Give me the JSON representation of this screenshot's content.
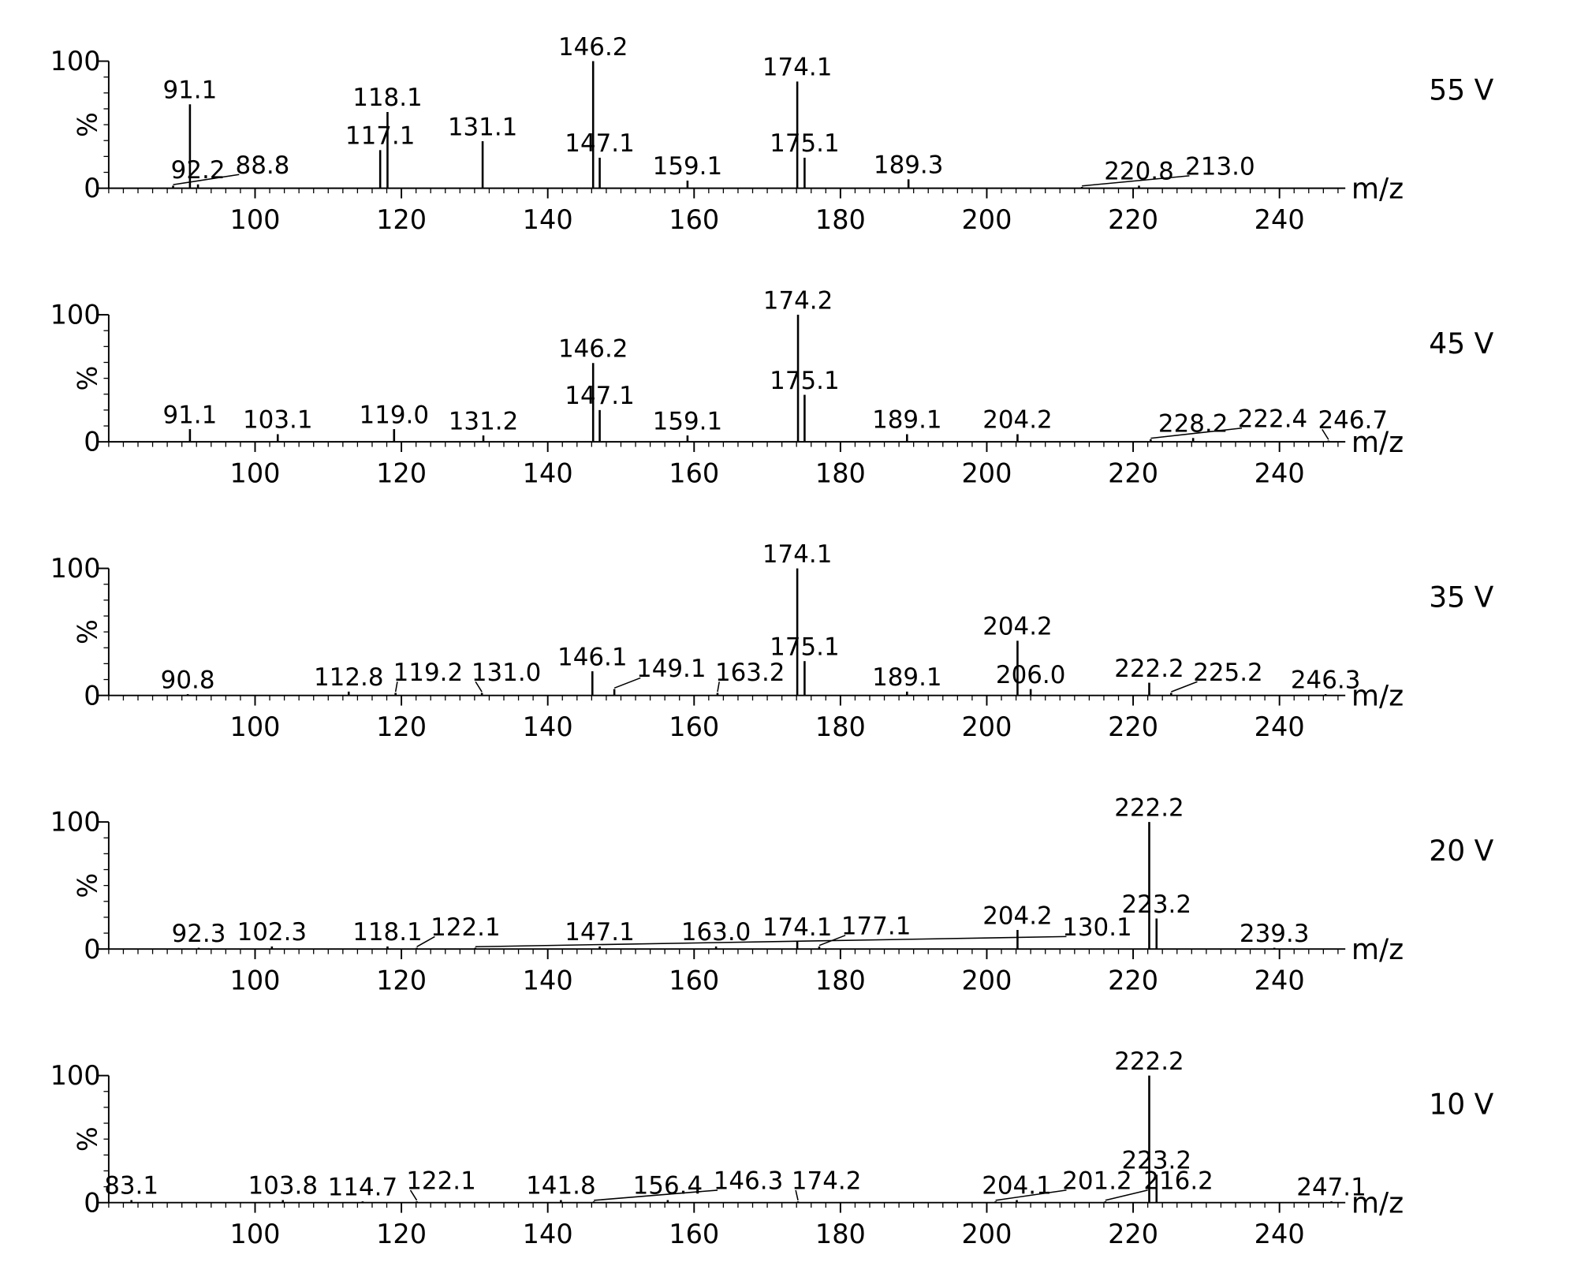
{
  "chart_data": [
    {
      "type": "bar",
      "annotation": "55 V",
      "ylabel": "%",
      "xlabel": "m/z",
      "color": "#000000",
      "x": [
        88.8,
        91.1,
        92.2,
        117.1,
        118.1,
        131.1,
        146.2,
        147.1,
        159.1,
        174.1,
        175.1,
        189.3,
        213.0,
        220.8
      ],
      "labels": [
        "88.8",
        "91.1",
        "92.2",
        "117.1",
        "118.1",
        "131.1",
        "146.2",
        "147.1",
        "159.1",
        "174.1",
        "175.1",
        "189.3",
        "213.0",
        "220.8"
      ],
      "values": [
        2,
        66,
        3,
        30,
        60,
        37,
        100,
        24,
        6,
        84,
        24,
        7,
        1,
        2
      ],
      "xlim": [
        80,
        249
      ],
      "ylim": [
        0,
        100
      ],
      "xticks": [
        100,
        120,
        140,
        160,
        180,
        200,
        220,
        240
      ],
      "yticks": [
        0,
        100
      ]
    },
    {
      "type": "bar",
      "annotation": "45 V",
      "ylabel": "%",
      "xlabel": "m/z",
      "color": "#000000",
      "x": [
        91.1,
        103.1,
        119.0,
        131.2,
        146.2,
        147.1,
        159.1,
        174.2,
        175.1,
        189.1,
        204.2,
        222.4,
        228.2,
        246.7
      ],
      "labels": [
        "91.1",
        "103.1",
        "119.0",
        "131.2",
        "146.2",
        "147.1",
        "159.1",
        "174.2",
        "175.1",
        "189.1",
        "204.2",
        "222.4",
        "228.2",
        "246.7"
      ],
      "values": [
        10,
        6,
        10,
        5,
        62,
        25,
        5,
        100,
        37,
        6,
        6,
        2,
        3,
        1
      ],
      "xlim": [
        80,
        249
      ],
      "ylim": [
        0,
        100
      ],
      "xticks": [
        100,
        120,
        140,
        160,
        180,
        200,
        220,
        240
      ],
      "yticks": [
        0,
        100
      ]
    },
    {
      "type": "bar",
      "annotation": "35 V",
      "ylabel": "%",
      "xlabel": "m/z",
      "color": "#000000",
      "x": [
        90.8,
        112.8,
        119.2,
        131.0,
        146.1,
        149.1,
        163.2,
        174.1,
        175.1,
        189.1,
        204.2,
        206.0,
        222.2,
        225.2,
        246.3
      ],
      "labels": [
        "90.8",
        "112.8",
        "119.2",
        "131.0",
        "146.1",
        "149.1",
        "163.2",
        "174.1",
        "175.1",
        "189.1",
        "204.2",
        "206.0",
        "222.2",
        "225.2",
        "246.3"
      ],
      "values": [
        1,
        3,
        2,
        2,
        19,
        5,
        2,
        100,
        27,
        3,
        43,
        5,
        10,
        2,
        1
      ],
      "xlim": [
        80,
        249
      ],
      "ylim": [
        0,
        100
      ],
      "xticks": [
        100,
        120,
        140,
        160,
        180,
        200,
        220,
        240
      ],
      "yticks": [
        0,
        100
      ]
    },
    {
      "type": "bar",
      "annotation": "20 V",
      "ylabel": "%",
      "xlabel": "m/z",
      "color": "#000000",
      "x": [
        92.3,
        102.3,
        118.1,
        122.1,
        130.1,
        147.1,
        163.0,
        174.1,
        177.1,
        204.2,
        222.2,
        223.2,
        239.3
      ],
      "labels": [
        "92.3",
        "102.3",
        "118.1",
        "122.1",
        "130.1",
        "147.1",
        "163.0",
        "174.1",
        "177.1",
        "204.2",
        "222.2",
        "223.2",
        "239.3"
      ],
      "values": [
        1,
        2,
        2,
        1,
        1,
        2,
        2,
        6,
        2,
        15,
        100,
        24,
        1
      ],
      "xlim": [
        80,
        249
      ],
      "ylim": [
        0,
        100
      ],
      "xticks": [
        100,
        120,
        140,
        160,
        180,
        200,
        220,
        240
      ],
      "yticks": [
        0,
        100
      ]
    },
    {
      "type": "bar",
      "annotation": "10 V",
      "ylabel": "%",
      "xlabel": "m/z",
      "color": "#000000",
      "x": [
        83.1,
        103.8,
        114.7,
        122.1,
        141.8,
        146.3,
        156.4,
        174.2,
        201.2,
        204.1,
        216.2,
        222.2,
        223.2,
        247.1
      ],
      "labels": [
        "83.1",
        "103.8",
        "114.7",
        "122.1",
        "141.8",
        "146.3",
        "156.4",
        "174.2",
        "201.2",
        "204.1",
        "216.2",
        "222.2",
        "223.2",
        "247.1"
      ],
      "values": [
        2,
        2,
        1,
        1,
        2,
        1,
        2,
        1,
        1,
        2,
        1,
        100,
        22,
        1
      ],
      "xlim": [
        80,
        249
      ],
      "ylim": [
        0,
        100
      ],
      "xticks": [
        100,
        120,
        140,
        160,
        180,
        200,
        220,
        240
      ],
      "yticks": [
        0,
        100
      ]
    }
  ]
}
